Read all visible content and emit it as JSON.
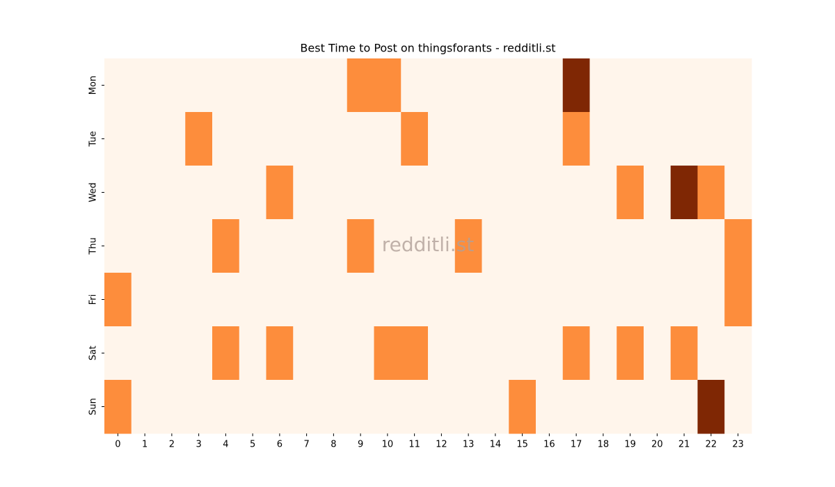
{
  "chart_data": {
    "type": "heatmap",
    "title": "Best Time to Post on thingsforants - redditli.st",
    "watermark": "redditli.st",
    "x": [
      0,
      1,
      2,
      3,
      4,
      5,
      6,
      7,
      8,
      9,
      10,
      11,
      12,
      13,
      14,
      15,
      16,
      17,
      18,
      19,
      20,
      21,
      22,
      23
    ],
    "y": [
      "Mon",
      "Tue",
      "Wed",
      "Thu",
      "Fri",
      "Sat",
      "Sun"
    ],
    "values": [
      [
        0,
        0,
        0,
        0,
        0,
        0,
        0,
        0,
        0,
        1,
        1,
        0,
        0,
        0,
        0,
        0,
        0,
        2,
        0,
        0,
        0,
        0,
        0,
        0
      ],
      [
        0,
        0,
        0,
        1,
        0,
        0,
        0,
        0,
        0,
        0,
        0,
        1,
        0,
        0,
        0,
        0,
        0,
        1,
        0,
        0,
        0,
        0,
        0,
        0
      ],
      [
        0,
        0,
        0,
        0,
        0,
        0,
        1,
        0,
        0,
        0,
        0,
        0,
        0,
        0,
        0,
        0,
        0,
        0,
        0,
        1,
        0,
        2,
        1,
        0
      ],
      [
        0,
        0,
        0,
        0,
        1,
        0,
        0,
        0,
        0,
        1,
        0,
        0,
        0,
        1,
        0,
        0,
        0,
        0,
        0,
        0,
        0,
        0,
        0,
        1
      ],
      [
        1,
        0,
        0,
        0,
        0,
        0,
        0,
        0,
        0,
        0,
        0,
        0,
        0,
        0,
        0,
        0,
        0,
        0,
        0,
        0,
        0,
        0,
        0,
        1
      ],
      [
        0,
        0,
        0,
        0,
        1,
        0,
        1,
        0,
        0,
        0,
        1,
        1,
        0,
        0,
        0,
        0,
        0,
        1,
        0,
        1,
        0,
        1,
        0,
        0
      ],
      [
        1,
        0,
        0,
        0,
        0,
        0,
        0,
        0,
        0,
        0,
        0,
        0,
        0,
        0,
        0,
        1,
        0,
        0,
        0,
        0,
        0,
        0,
        2,
        0
      ]
    ],
    "colors": [
      "#fff5eb",
      "#fd8d3c",
      "#7f2704"
    ]
  }
}
